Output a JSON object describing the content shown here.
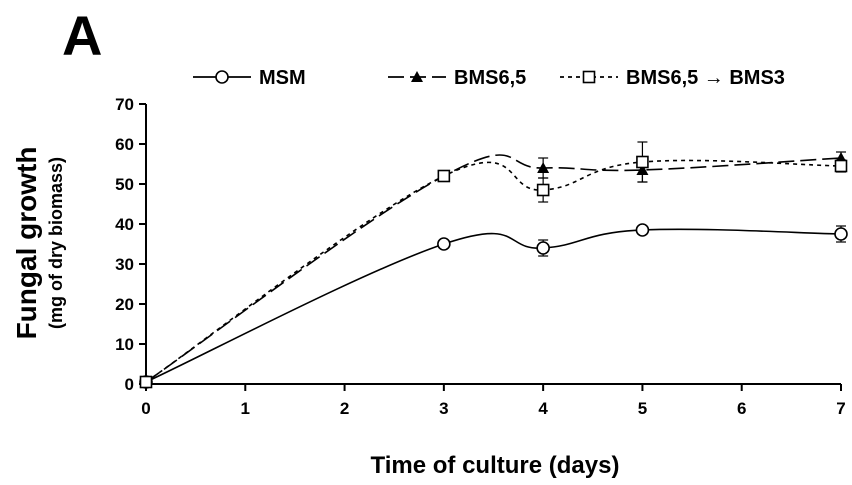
{
  "panel_label": "A",
  "chart_data": {
    "type": "line",
    "title": "",
    "xlabel": "Time of culture (days)",
    "ylabel": "Fungal growth",
    "ylabel_sub": "(mg of dry biomass)",
    "xlim": [
      0,
      7
    ],
    "ylim": [
      0,
      70
    ],
    "xticks": [
      0,
      1,
      2,
      3,
      4,
      5,
      6,
      7
    ],
    "yticks": [
      0,
      10,
      20,
      30,
      40,
      50,
      60,
      70
    ],
    "grid": false,
    "legend_position": "top",
    "series": [
      {
        "name": "MSM",
        "marker": "open-circle",
        "line": "solid",
        "x": [
          0,
          3,
          4,
          5,
          7
        ],
        "y": [
          0.5,
          35,
          34,
          38.5,
          37.5
        ],
        "err": [
          0,
          0.5,
          2,
          1,
          2
        ]
      },
      {
        "name": "BMS6,5",
        "marker": "filled-triangle",
        "line": "dashed",
        "x": [
          0,
          3,
          4,
          5,
          7
        ],
        "y": [
          0.5,
          52,
          54,
          53.5,
          56.5
        ],
        "err": [
          0,
          0.5,
          2.5,
          3,
          1.5
        ]
      },
      {
        "name": "BMS6,5 → BMS3",
        "marker": "open-square",
        "line": "dotted",
        "x": [
          0,
          3,
          4,
          5,
          7
        ],
        "y": [
          0.5,
          52,
          48.5,
          55.5,
          54.5
        ],
        "err": [
          0,
          0.5,
          3,
          5,
          1.5
        ]
      }
    ]
  }
}
